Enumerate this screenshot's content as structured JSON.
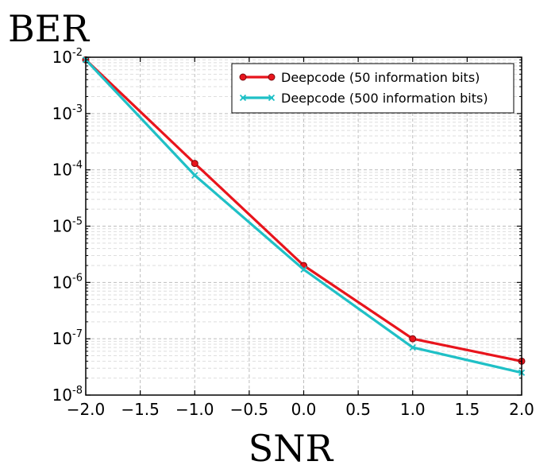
{
  "chart_data": {
    "type": "line",
    "title": "",
    "xlabel": "SNR",
    "ylabel": "BER",
    "xscale": "linear",
    "yscale": "log",
    "xlim": [
      -2.0,
      2.0
    ],
    "ylim": [
      1e-08,
      0.01
    ],
    "grid": true,
    "legend_position": "top-right",
    "x_ticks": [
      -2.0,
      -1.5,
      -1.0,
      -0.5,
      0.0,
      0.5,
      1.0,
      1.5,
      2.0
    ],
    "x_tick_labels": [
      "−2.0",
      "−1.5",
      "−1.0",
      "−0.5",
      "0.0",
      "0.5",
      "1.0",
      "1.5",
      "2.0"
    ],
    "y_ticks": [
      0.01,
      0.001,
      0.0001,
      1e-05,
      1e-06,
      1e-07,
      1e-08
    ],
    "y_tick_labels": [
      {
        "base": "10",
        "exp": "-2"
      },
      {
        "base": "10",
        "exp": "-3"
      },
      {
        "base": "10",
        "exp": "-4"
      },
      {
        "base": "10",
        "exp": "-5"
      },
      {
        "base": "10",
        "exp": "-6"
      },
      {
        "base": "10",
        "exp": "-7"
      },
      {
        "base": "10",
        "exp": "-8"
      }
    ],
    "series": [
      {
        "name": "Deepcode (50 information bits)",
        "color": "#e8141c",
        "marker": "circle",
        "x": [
          -2.0,
          -1.0,
          0.0,
          1.0,
          2.0
        ],
        "y": [
          0.009,
          0.00013,
          2e-06,
          1e-07,
          4e-08
        ]
      },
      {
        "name": "Deepcode (500 information bits)",
        "color": "#1fc0c6",
        "marker": "x",
        "x": [
          -2.0,
          -1.0,
          0.0,
          1.0,
          2.0
        ],
        "y": [
          0.009,
          8e-05,
          1.7e-06,
          7e-08,
          2.5e-08
        ]
      }
    ]
  }
}
